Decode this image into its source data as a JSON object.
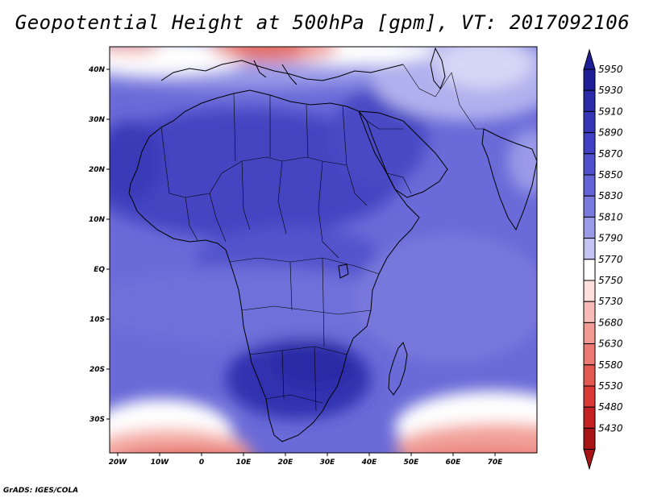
{
  "title": "Geopotential Height at 500hPa [gpm], VT: 2017092106",
  "footer": "GrADS: IGES/COLA",
  "map": {
    "region": "Africa",
    "lon_range": [
      -25,
      80
    ],
    "lat_range": [
      -37,
      45
    ],
    "lon_ticks": [
      "20W",
      "10W",
      "0",
      "10E",
      "20E",
      "30E",
      "40E",
      "50E",
      "60E",
      "70E"
    ],
    "lat_ticks": [
      "40N",
      "30N",
      "20N",
      "10N",
      "EQ",
      "10S",
      "20S",
      "30S"
    ]
  },
  "colorbar": {
    "labels": [
      "5950",
      "5930",
      "5910",
      "5890",
      "5870",
      "5850",
      "5830",
      "5810",
      "5790",
      "5770",
      "5750",
      "5730",
      "5680",
      "5630",
      "5580",
      "5530",
      "5480",
      "5430"
    ],
    "colors": [
      "#1e1e96",
      "#2a2aa8",
      "#3535b8",
      "#4040c4",
      "#5050cc",
      "#6464d6",
      "#7a7ade",
      "#9a9ae8",
      "#c4c4f2",
      "#ffffff",
      "#fde0de",
      "#f8bcb8",
      "#f29a94",
      "#ec7a74",
      "#e45852",
      "#d83a36",
      "#c42222",
      "#a81414"
    ]
  }
}
